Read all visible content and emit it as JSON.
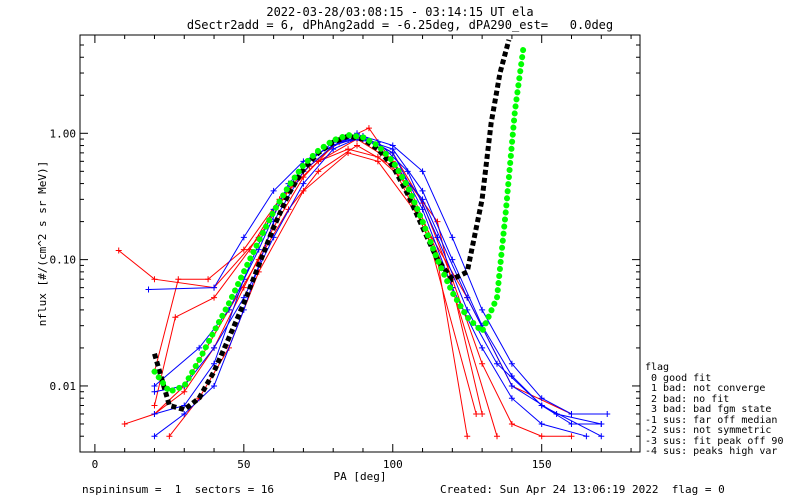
{
  "header": {
    "title_line1": "2022-03-28/03:08:15 - 03:14:15 UT ela",
    "title_line2": "dSectr2add = 6, dPhAng2add = -6.25deg, dPA290_est=   0.0deg"
  },
  "legend": {
    "heading": "flag",
    "items": [
      " 0 good fit",
      " 1 bad: not converge",
      " 2 bad: no fit",
      " 3 bad: bad fgm state",
      "-1 sus: far off median",
      "-2 sus: not symmetric",
      "-3 sus: fit peak off 90",
      "-4 sus: peaks high var"
    ]
  },
  "footer": {
    "left": "nspininsum =  1  sectors = 16",
    "right": "Created: Sun Apr 24 13:06:19 2022  flag = 0"
  },
  "chart_data": {
    "type": "line",
    "title": "2022-03-28/03:08:15 - 03:14:15 UT ela",
    "subtitle": "dSectr2add = 6, dPhAng2add = -6.25deg, dPA290_est=   0.0deg",
    "xlabel": "PA [deg]",
    "ylabel": "nflux [#/(cm^2 s sr MeV)]",
    "xlim": [
      -5,
      183
    ],
    "ylim": [
      0.003,
      6.0
    ],
    "yscale": "log",
    "x_ticks": [
      0,
      50,
      100,
      150
    ],
    "y_ticks": [
      0.01,
      0.1,
      1.0
    ],
    "y_tick_labels": [
      "0.01",
      "0.10",
      "1.00"
    ],
    "grid": false,
    "series": [
      {
        "color": "#ff0000",
        "marker": "plus",
        "curves": [
          {
            "x": [
              20,
              30,
              40,
              50,
              60,
              70,
              80,
              90,
              100,
              110,
              120,
              130,
              140,
              150,
              160
            ],
            "y": [
              0.006,
              0.009,
              0.02,
              0.06,
              0.18,
              0.45,
              0.8,
              0.95,
              0.7,
              0.28,
              0.07,
              0.015,
              0.005,
              0.004,
              0.004
            ]
          },
          {
            "x": [
              8,
              20,
              40,
              55,
              65,
              75,
              85,
              95,
              105,
              120,
              135
            ],
            "y": [
              0.118,
              0.07,
              0.06,
              0.15,
              0.35,
              0.6,
              0.75,
              0.65,
              0.4,
              0.06,
              0.004
            ]
          },
          {
            "x": [
              20,
              27,
              40,
              52,
              62,
              72,
              82,
              92,
              102,
              115,
              125
            ],
            "y": [
              0.007,
              0.035,
              0.05,
              0.12,
              0.3,
              0.55,
              0.85,
              1.1,
              0.5,
              0.1,
              0.004
            ]
          },
          {
            "x": [
              10,
              20,
              30,
              45,
              55,
              65,
              75,
              88,
              100,
              112,
              128
            ],
            "y": [
              0.005,
              0.006,
              0.01,
              0.04,
              0.1,
              0.25,
              0.5,
              0.8,
              0.55,
              0.15,
              0.006
            ]
          },
          {
            "x": [
              25,
              35,
              45,
              55,
              70,
              85,
              95,
              110,
              125,
              140,
              160
            ],
            "y": [
              0.004,
              0.008,
              0.02,
              0.08,
              0.35,
              0.7,
              0.6,
              0.2,
              0.05,
              0.01,
              0.006
            ]
          },
          {
            "x": [
              20,
              28,
              38,
              50,
              62,
              75,
              88,
              100,
              115,
              130
            ],
            "y": [
              0.013,
              0.07,
              0.07,
              0.12,
              0.3,
              0.6,
              0.9,
              0.6,
              0.2,
              0.006
            ]
          }
        ]
      },
      {
        "color": "#0000ff",
        "marker": "plus",
        "curves": [
          {
            "x": [
              20,
              30,
              40,
              50,
              60,
              70,
              80,
              90,
              100,
              110,
              120,
              130,
              140,
              150,
              160,
              170
            ],
            "y": [
              0.006,
              0.007,
              0.015,
              0.07,
              0.25,
              0.55,
              0.85,
              0.9,
              0.75,
              0.35,
              0.1,
              0.03,
              0.012,
              0.007,
              0.005,
              0.005
            ]
          },
          {
            "x": [
              18,
              40,
              50,
              60,
              70,
              80,
              90,
              100,
              110,
              120,
              130,
              140,
              150,
              160,
              172
            ],
            "y": [
              0.058,
              0.06,
              0.15,
              0.35,
              0.6,
              0.8,
              0.95,
              0.8,
              0.5,
              0.15,
              0.04,
              0.015,
              0.008,
              0.006,
              0.006
            ]
          },
          {
            "x": [
              20,
              30,
              40,
              50,
              60,
              70,
              80,
              90,
              100,
              110,
              120,
              130,
              140,
              150,
              165
            ],
            "y": [
              0.009,
              0.01,
              0.02,
              0.05,
              0.15,
              0.4,
              0.75,
              0.95,
              0.7,
              0.25,
              0.06,
              0.02,
              0.008,
              0.005,
              0.004
            ]
          },
          {
            "x": [
              20,
              35,
              45,
              55,
              65,
              75,
              85,
              95,
              105,
              115,
              125,
              135,
              150,
              170
            ],
            "y": [
              0.01,
              0.02,
              0.04,
              0.12,
              0.4,
              0.7,
              0.9,
              0.85,
              0.5,
              0.15,
              0.04,
              0.015,
              0.007,
              0.004
            ]
          },
          {
            "x": [
              20,
              30,
              40,
              50,
              60,
              70,
              80,
              88,
              96,
              110,
              125,
              140,
              155,
              170
            ],
            "y": [
              0.004,
              0.006,
              0.01,
              0.04,
              0.2,
              0.5,
              0.8,
              1.0,
              0.75,
              0.3,
              0.05,
              0.01,
              0.006,
              0.005
            ]
          }
        ]
      },
      {
        "name": "",
        "color": "#000000",
        "style": "dashed",
        "x": [
          20,
          25,
          30,
          35,
          40,
          45,
          50,
          55,
          60,
          65,
          70,
          75,
          80,
          85,
          90,
          95,
          100,
          105,
          110,
          115,
          120,
          125,
          130,
          133,
          136,
          139
        ],
        "y": [
          0.018,
          0.007,
          0.0065,
          0.008,
          0.013,
          0.024,
          0.045,
          0.09,
          0.18,
          0.33,
          0.52,
          0.7,
          0.85,
          0.95,
          0.9,
          0.75,
          0.55,
          0.33,
          0.18,
          0.1,
          0.07,
          0.08,
          0.3,
          1.2,
          3.0,
          5.5
        ]
      },
      {
        "name": "",
        "color": "#00ff00",
        "style": "dotted",
        "x": [
          20,
          25,
          30,
          35,
          40,
          45,
          50,
          55,
          60,
          65,
          70,
          75,
          80,
          85,
          90,
          95,
          100,
          105,
          110,
          115,
          120,
          125,
          130,
          135,
          138,
          141,
          144
        ],
        "y": [
          0.013,
          0.009,
          0.01,
          0.016,
          0.027,
          0.045,
          0.08,
          0.14,
          0.24,
          0.38,
          0.56,
          0.73,
          0.88,
          0.97,
          0.93,
          0.8,
          0.6,
          0.38,
          0.2,
          0.1,
          0.055,
          0.035,
          0.027,
          0.05,
          0.25,
          1.5,
          5.0
        ]
      }
    ]
  }
}
